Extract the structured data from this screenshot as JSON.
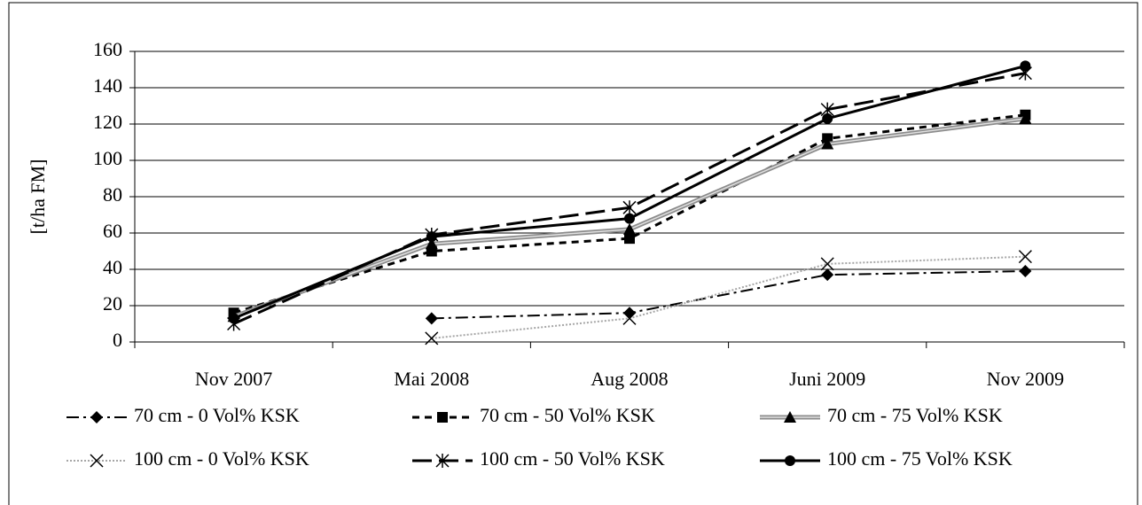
{
  "chart_data": {
    "type": "line",
    "y_label": "[t/ha FM]",
    "categories": [
      "Nov 2007",
      "Mai 2008",
      "Aug 2008",
      "Juni 2009",
      "Nov 2009"
    ],
    "ylim": [
      0,
      160
    ],
    "yticks": [
      0,
      20,
      40,
      60,
      80,
      100,
      120,
      140,
      160
    ],
    "grid": true,
    "series": [
      {
        "name": "70 cm - 0 Vol% KSK",
        "color": "#000000",
        "values": [
          null,
          13,
          16,
          37,
          39
        ]
      },
      {
        "name": "70 cm - 50 Vol% KSK",
        "color": "#000000",
        "values": [
          16,
          50,
          57,
          112,
          125
        ]
      },
      {
        "name": "70 cm - 75 Vol% KSK",
        "color": "#8c8c8c",
        "values": [
          14,
          54,
          62,
          109,
          123
        ]
      },
      {
        "name": "100 cm - 0 Vol% KSK",
        "color": "#a6a6a6",
        "values": [
          null,
          2,
          13,
          43,
          47
        ]
      },
      {
        "name": "100 cm - 50 Vol% KSK",
        "color": "#000000",
        "values": [
          10,
          59,
          74,
          128,
          148
        ]
      },
      {
        "name": "100 cm - 75 Vol% KSK",
        "color": "#000000",
        "values": [
          13,
          58,
          68,
          123,
          152
        ]
      }
    ]
  }
}
